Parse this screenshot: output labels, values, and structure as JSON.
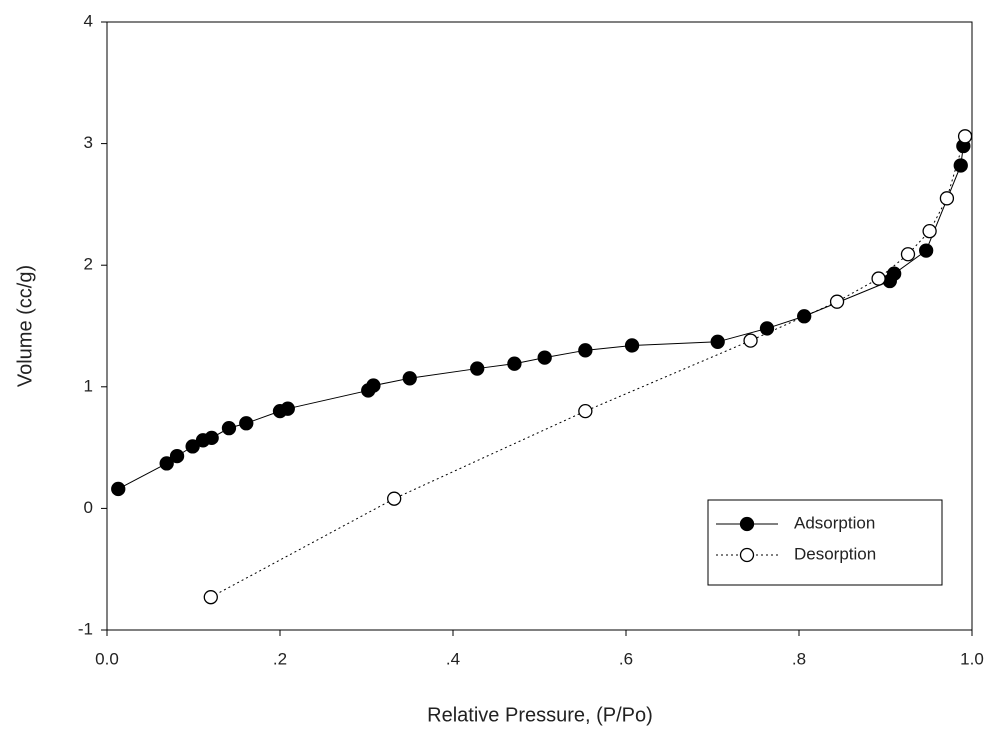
{
  "chart_data": {
    "type": "scatter-line",
    "xlabel": "Relative Pressure, (P/Po)",
    "ylabel": "Volume (cc/g)",
    "xlim": [
      0,
      1
    ],
    "ylim": [
      -1,
      4
    ],
    "xticks": [
      {
        "value": 0,
        "label": "0.0"
      },
      {
        "value": 0.2,
        "label": ".2"
      },
      {
        "value": 0.4,
        "label": ".4"
      },
      {
        "value": 0.6,
        "label": ".6"
      },
      {
        "value": 0.8,
        "label": ".8"
      },
      {
        "value": 1,
        "label": "1.0"
      }
    ],
    "yticks": [
      -1,
      0,
      1,
      2,
      3,
      4
    ],
    "legend_position": "lower right",
    "series": [
      {
        "name": "Adsorption",
        "color": "#000000",
        "marker": "filled",
        "linestyle": "solid",
        "x": [
          0.013,
          0.069,
          0.081,
          0.099,
          0.111,
          0.121,
          0.141,
          0.161,
          0.2,
          0.209,
          0.302,
          0.308,
          0.35,
          0.428,
          0.471,
          0.506,
          0.553,
          0.607,
          0.706,
          0.763,
          0.806,
          0.905,
          0.91,
          0.947,
          0.987,
          0.99
        ],
        "values": [
          0.16,
          0.37,
          0.43,
          0.51,
          0.56,
          0.58,
          0.66,
          0.7,
          0.8,
          0.82,
          0.97,
          1.01,
          1.07,
          1.15,
          1.19,
          1.24,
          1.3,
          1.34,
          1.37,
          1.48,
          1.58,
          1.87,
          1.93,
          2.12,
          2.82,
          2.98
        ]
      },
      {
        "name": "Desorption",
        "color": "#000000",
        "marker": "open",
        "linestyle": "dotted",
        "x": [
          0.12,
          0.332,
          0.553,
          0.744,
          0.844,
          0.892,
          0.926,
          0.951,
          0.971,
          0.992
        ],
        "values": [
          -0.73,
          0.08,
          0.8,
          1.38,
          1.7,
          1.89,
          2.09,
          2.28,
          2.55,
          3.06
        ]
      }
    ]
  }
}
